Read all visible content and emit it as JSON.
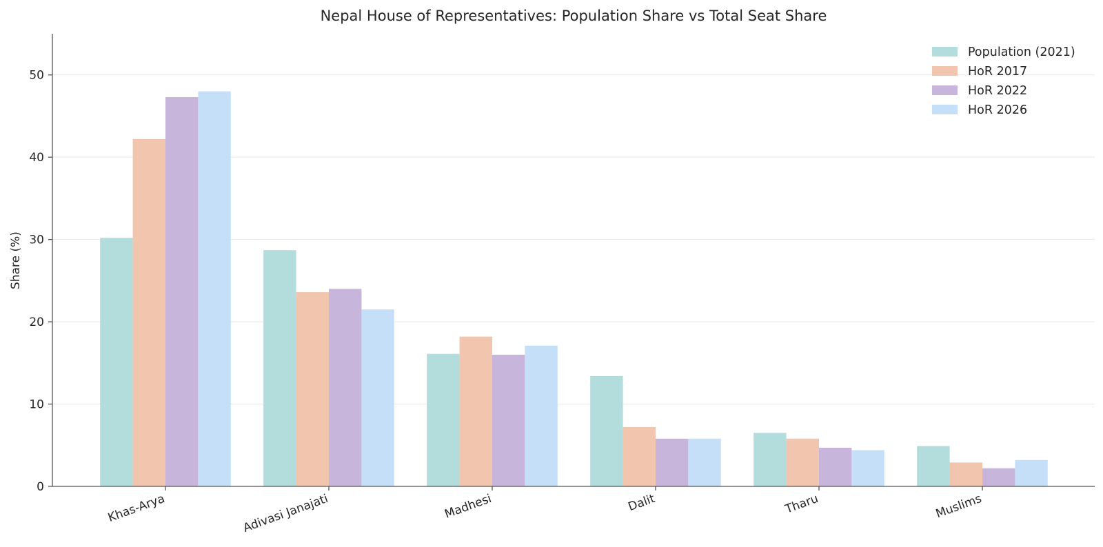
{
  "chart_data": {
    "type": "bar",
    "title": "Nepal House of Representatives: Population Share vs Total Seat Share",
    "xlabel": "",
    "ylabel": "Share (%)",
    "ylim": [
      0,
      55
    ],
    "yticks": [
      0,
      10,
      20,
      30,
      40,
      50
    ],
    "grid": "horizontal",
    "legend_position": "top-right",
    "categories": [
      "Khas-Arya",
      "Adivasi Janajati",
      "Madhesi",
      "Dalit",
      "Tharu",
      "Muslims"
    ],
    "series": [
      {
        "name": "Population (2021)",
        "color": "#b3dcdc",
        "values": [
          30.2,
          28.7,
          16.1,
          13.4,
          6.5,
          4.9
        ]
      },
      {
        "name": "HoR 2017",
        "color": "#f2c6ae",
        "values": [
          42.2,
          23.6,
          18.2,
          7.2,
          5.8,
          2.9
        ]
      },
      {
        "name": "HoR 2022",
        "color": "#c8b5dc",
        "values": [
          47.3,
          24.0,
          16.0,
          5.8,
          4.7,
          2.2
        ]
      },
      {
        "name": "HoR 2026",
        "color": "#c5dff8",
        "values": [
          48.0,
          21.5,
          17.1,
          5.8,
          4.4,
          3.2
        ]
      }
    ]
  }
}
